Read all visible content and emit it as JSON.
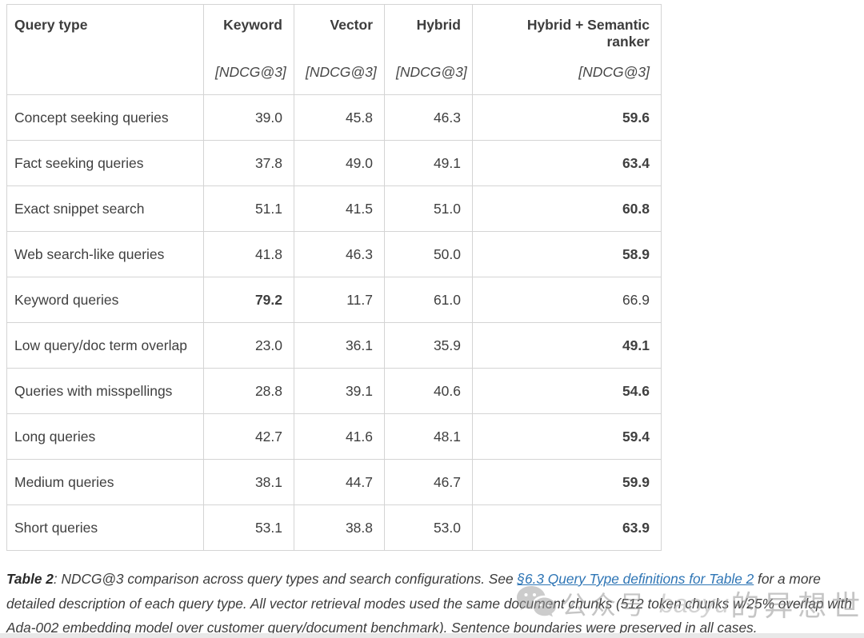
{
  "table": {
    "columns": [
      {
        "label": "Query type",
        "sublabel": ""
      },
      {
        "label": "Keyword",
        "sublabel": "[NDCG@3]"
      },
      {
        "label": "Vector",
        "sublabel": "[NDCG@3]"
      },
      {
        "label": "Hybrid",
        "sublabel": "[NDCG@3]"
      },
      {
        "label": "Hybrid + Semantic ranker",
        "sublabel": "[NDCG@3]"
      }
    ],
    "rows": [
      {
        "query_type": "Concept seeking queries",
        "values": [
          "39.0",
          "45.8",
          "46.3",
          "59.6"
        ],
        "bold": [
          false,
          false,
          false,
          true
        ]
      },
      {
        "query_type": "Fact seeking queries",
        "values": [
          "37.8",
          "49.0",
          "49.1",
          "63.4"
        ],
        "bold": [
          false,
          false,
          false,
          true
        ]
      },
      {
        "query_type": "Exact snippet search",
        "values": [
          "51.1",
          "41.5",
          "51.0",
          "60.8"
        ],
        "bold": [
          false,
          false,
          false,
          true
        ]
      },
      {
        "query_type": "Web search-like queries",
        "values": [
          "41.8",
          "46.3",
          "50.0",
          "58.9"
        ],
        "bold": [
          false,
          false,
          false,
          true
        ]
      },
      {
        "query_type": "Keyword queries",
        "values": [
          "79.2",
          "11.7",
          "61.0",
          "66.9"
        ],
        "bold": [
          true,
          false,
          false,
          false
        ]
      },
      {
        "query_type": "Low query/doc term overlap",
        "values": [
          "23.0",
          "36.1",
          "35.9",
          "49.1"
        ],
        "bold": [
          false,
          false,
          false,
          true
        ]
      },
      {
        "query_type": "Queries with misspellings",
        "values": [
          "28.8",
          "39.1",
          "40.6",
          "54.6"
        ],
        "bold": [
          false,
          false,
          false,
          true
        ]
      },
      {
        "query_type": "Long queries",
        "values": [
          "42.7",
          "41.6",
          "48.1",
          "59.4"
        ],
        "bold": [
          false,
          false,
          false,
          true
        ]
      },
      {
        "query_type": "Medium queries",
        "values": [
          "38.1",
          "44.7",
          "46.7",
          "59.9"
        ],
        "bold": [
          false,
          false,
          false,
          true
        ]
      },
      {
        "query_type": "Short queries",
        "values": [
          "53.1",
          "38.8",
          "53.0",
          "63.9"
        ],
        "bold": [
          false,
          false,
          false,
          true
        ]
      }
    ]
  },
  "caption": {
    "label": "Table 2",
    "before_link": ": NDCG@3 comparison across query types and search configurations. See ",
    "link_text": "§6.3 Query Type definitions for Table 2",
    "after_link": " for a more detailed description of each query type. All vector retrieval modes used the same document chunks (512 token chunks w/25% overlap with Ada-002 embedding model over customer query/document benchmark). Sentence boundaries were preserved in all cases."
  },
  "watermark": {
    "icon": "wechat-icon",
    "text_cn_prefix": "公众号",
    "text_latin": "baoyu",
    "text_cn_suffix": "的异想世界"
  },
  "colors": {
    "table_border": "#d4d4d4",
    "body_text": "#3f3f3f",
    "link_blue": "#2e75b5",
    "watermark_gray": "#8c8c8c"
  }
}
